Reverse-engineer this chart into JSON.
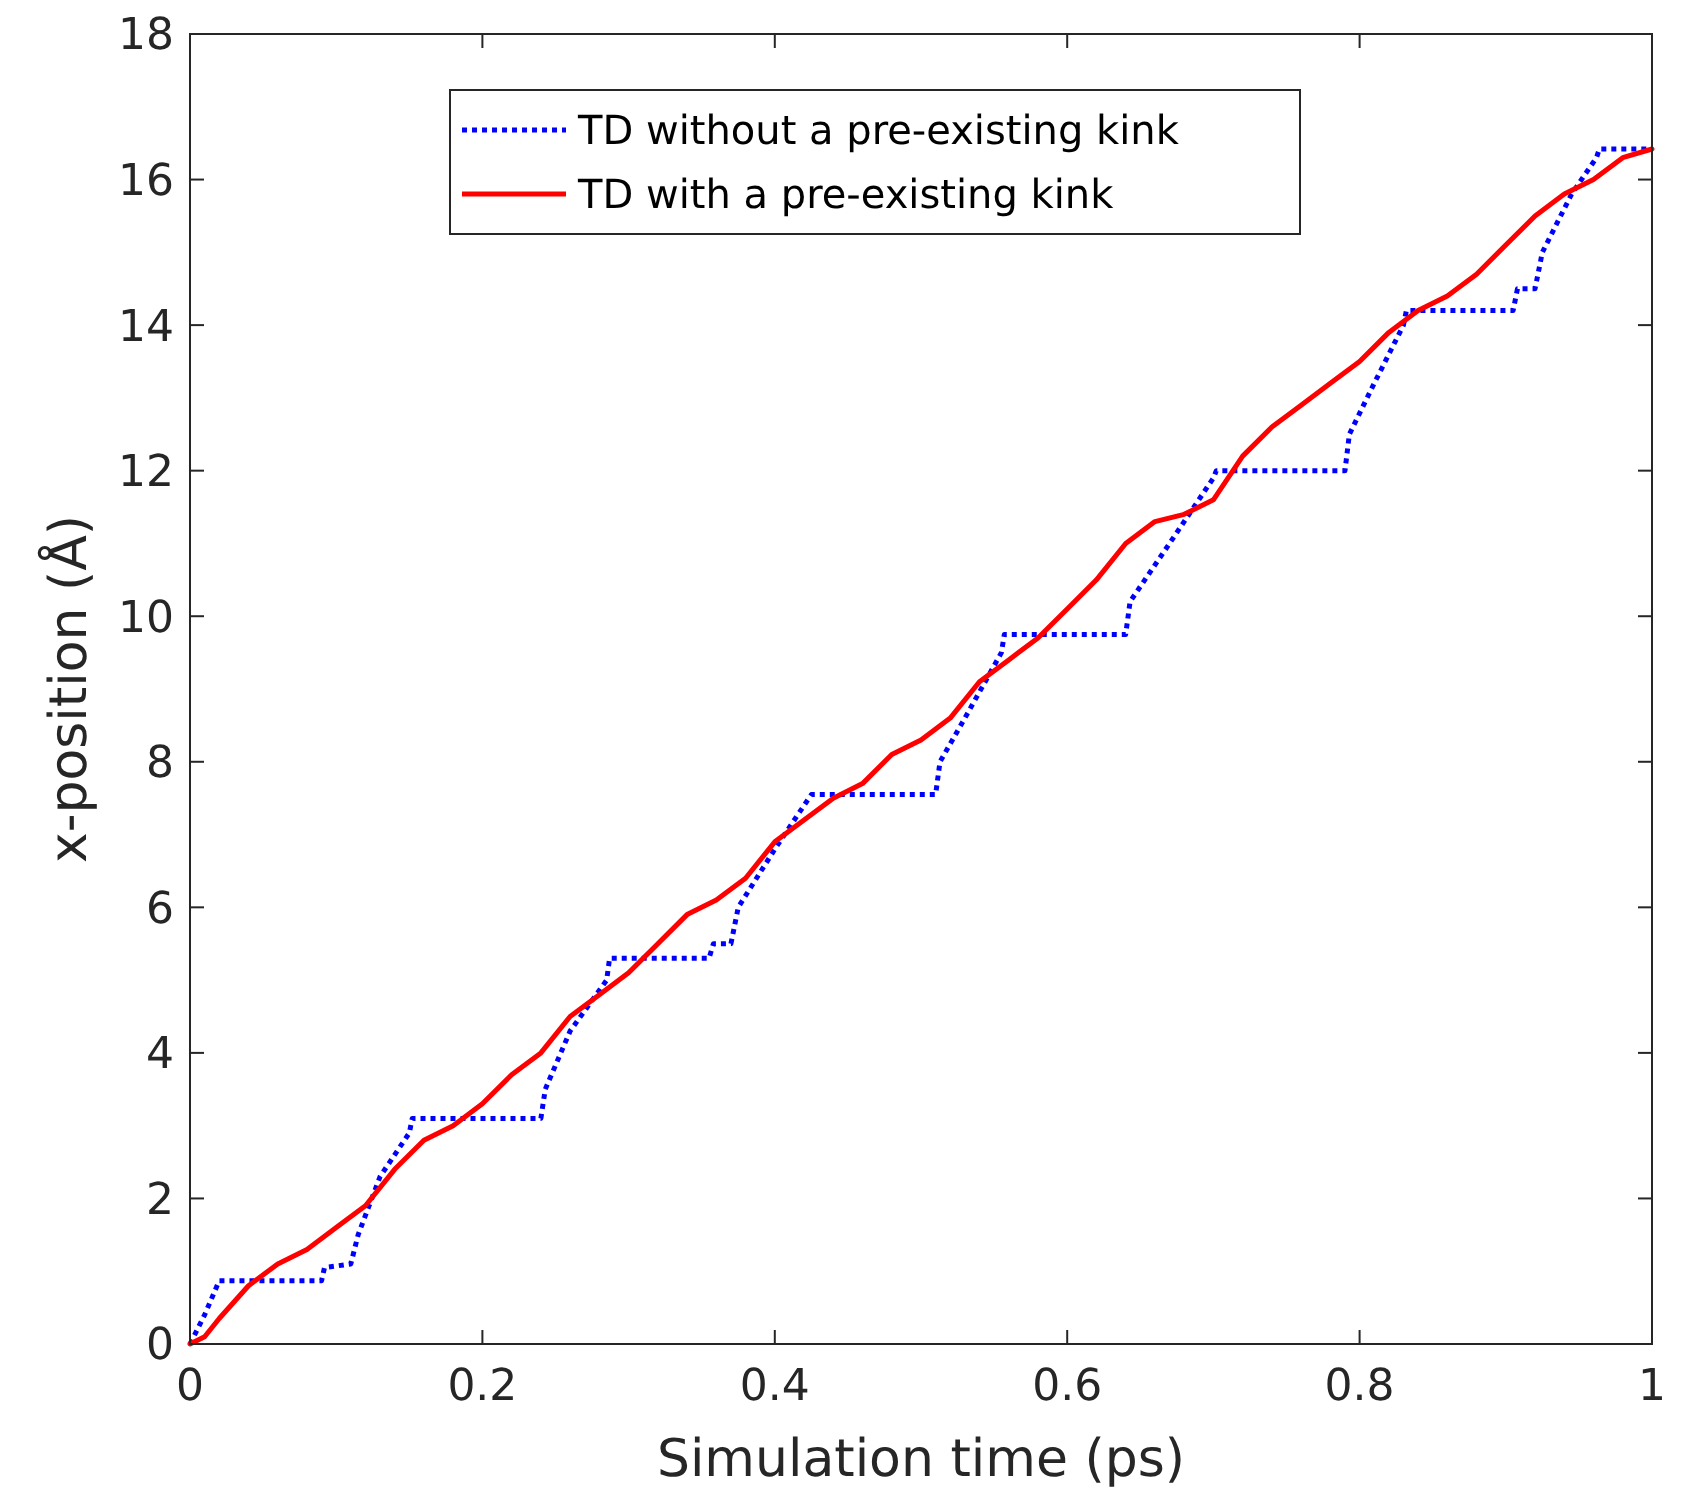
{
  "chart_data": {
    "type": "line",
    "xlabel": "Simulation time (ps)",
    "ylabel": "x-position (Å)",
    "xlim": [
      0,
      1
    ],
    "ylim": [
      0,
      18
    ],
    "xticks": [
      0,
      0.2,
      0.4,
      0.6,
      0.8,
      1
    ],
    "yticks": [
      0,
      2,
      4,
      6,
      8,
      10,
      12,
      14,
      16,
      18
    ],
    "grid": false,
    "legend": "top",
    "series": [
      {
        "name": "TD without a pre-existing kink",
        "color": "#0000ff",
        "line_style": "dotted",
        "x": [
          0,
          0.01,
          0.02,
          0.03,
          0.09,
          0.092,
          0.11,
          0.115,
          0.13,
          0.15,
          0.152,
          0.24,
          0.243,
          0.26,
          0.285,
          0.287,
          0.355,
          0.358,
          0.37,
          0.375,
          0.4,
          0.425,
          0.427,
          0.51,
          0.513,
          0.53,
          0.555,
          0.557,
          0.64,
          0.643,
          0.67,
          0.7,
          0.702,
          0.79,
          0.793,
          0.81,
          0.83,
          0.832,
          0.905,
          0.908,
          0.92,
          0.925,
          0.945,
          0.962,
          0.964,
          1
        ],
        "values": [
          0,
          0.4,
          0.87,
          0.87,
          0.87,
          1.05,
          1.1,
          1.5,
          2.3,
          2.9,
          3.1,
          3.1,
          3.5,
          4.3,
          5.0,
          5.3,
          5.3,
          5.5,
          5.5,
          6.0,
          6.8,
          7.55,
          7.55,
          7.55,
          8.0,
          8.6,
          9.5,
          9.75,
          9.75,
          10.2,
          11.0,
          11.9,
          12.0,
          12.0,
          12.5,
          13.2,
          14.0,
          14.2,
          14.2,
          14.5,
          14.5,
          15.0,
          15.8,
          16.3,
          16.42,
          16.42
        ]
      },
      {
        "name": "TD with a pre-existing kink",
        "color": "#ff0000",
        "line_style": "solid",
        "x": [
          0,
          0.01,
          0.02,
          0.04,
          0.06,
          0.08,
          0.1,
          0.12,
          0.14,
          0.16,
          0.18,
          0.2,
          0.22,
          0.24,
          0.26,
          0.28,
          0.3,
          0.32,
          0.34,
          0.36,
          0.38,
          0.4,
          0.42,
          0.44,
          0.46,
          0.48,
          0.5,
          0.52,
          0.54,
          0.56,
          0.58,
          0.6,
          0.62,
          0.64,
          0.66,
          0.68,
          0.7,
          0.72,
          0.74,
          0.76,
          0.78,
          0.8,
          0.82,
          0.84,
          0.86,
          0.88,
          0.9,
          0.92,
          0.94,
          0.96,
          0.98,
          1
        ],
        "values": [
          0,
          0.1,
          0.35,
          0.8,
          1.1,
          1.3,
          1.6,
          1.9,
          2.4,
          2.8,
          3.0,
          3.3,
          3.7,
          4.0,
          4.5,
          4.8,
          5.1,
          5.5,
          5.9,
          6.1,
          6.4,
          6.9,
          7.2,
          7.5,
          7.7,
          8.1,
          8.3,
          8.6,
          9.1,
          9.4,
          9.7,
          10.1,
          10.5,
          11.0,
          11.3,
          11.4,
          11.6,
          12.2,
          12.6,
          12.9,
          13.2,
          13.5,
          13.9,
          14.2,
          14.4,
          14.7,
          15.1,
          15.5,
          15.8,
          16.0,
          16.3,
          16.42
        ]
      }
    ]
  }
}
